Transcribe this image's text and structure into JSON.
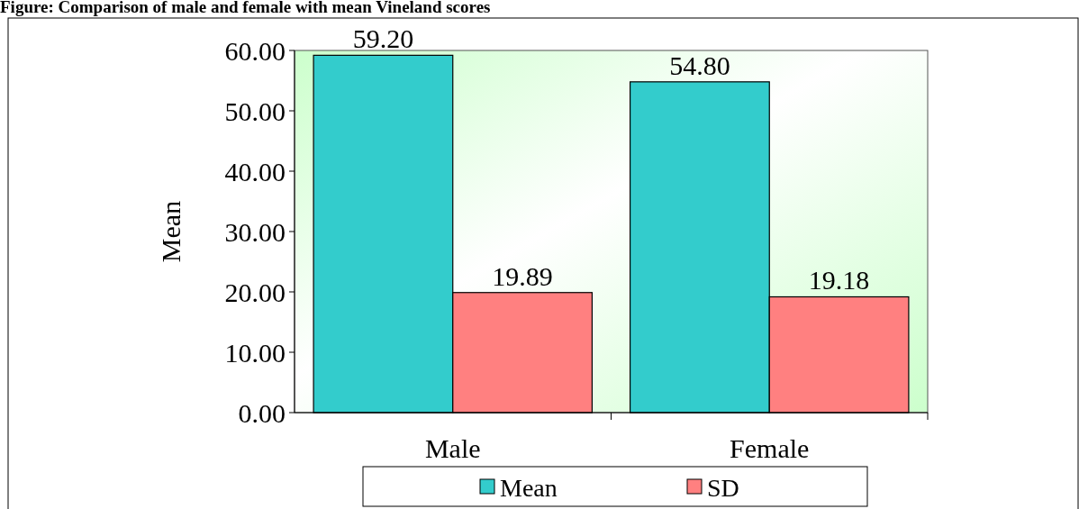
{
  "chart_data": {
    "type": "bar",
    "title": "Figure: Comparison of male and female with mean Vineland scores",
    "ylabel": "Mean",
    "categories": [
      "Male",
      "Female"
    ],
    "series": [
      {
        "name": "Mean",
        "color": "#33cccc",
        "values": [
          59.2,
          54.8
        ],
        "value_labels": [
          "59.20",
          "54.80"
        ]
      },
      {
        "name": "SD",
        "color": "#ff8080",
        "values": [
          19.89,
          19.18
        ],
        "value_labels": [
          "19.89",
          "19.18"
        ]
      }
    ],
    "ylim": [
      0,
      60
    ],
    "yticks": [
      {
        "value": 0,
        "label": "0.00"
      },
      {
        "value": 10,
        "label": "10.00"
      },
      {
        "value": 20,
        "label": "20.00"
      },
      {
        "value": 30,
        "label": "30.00"
      },
      {
        "value": 40,
        "label": "40.00"
      },
      {
        "value": 50,
        "label": "50.00"
      },
      {
        "value": 60,
        "label": "60.00"
      }
    ],
    "legend": "bottom",
    "grid": false
  }
}
